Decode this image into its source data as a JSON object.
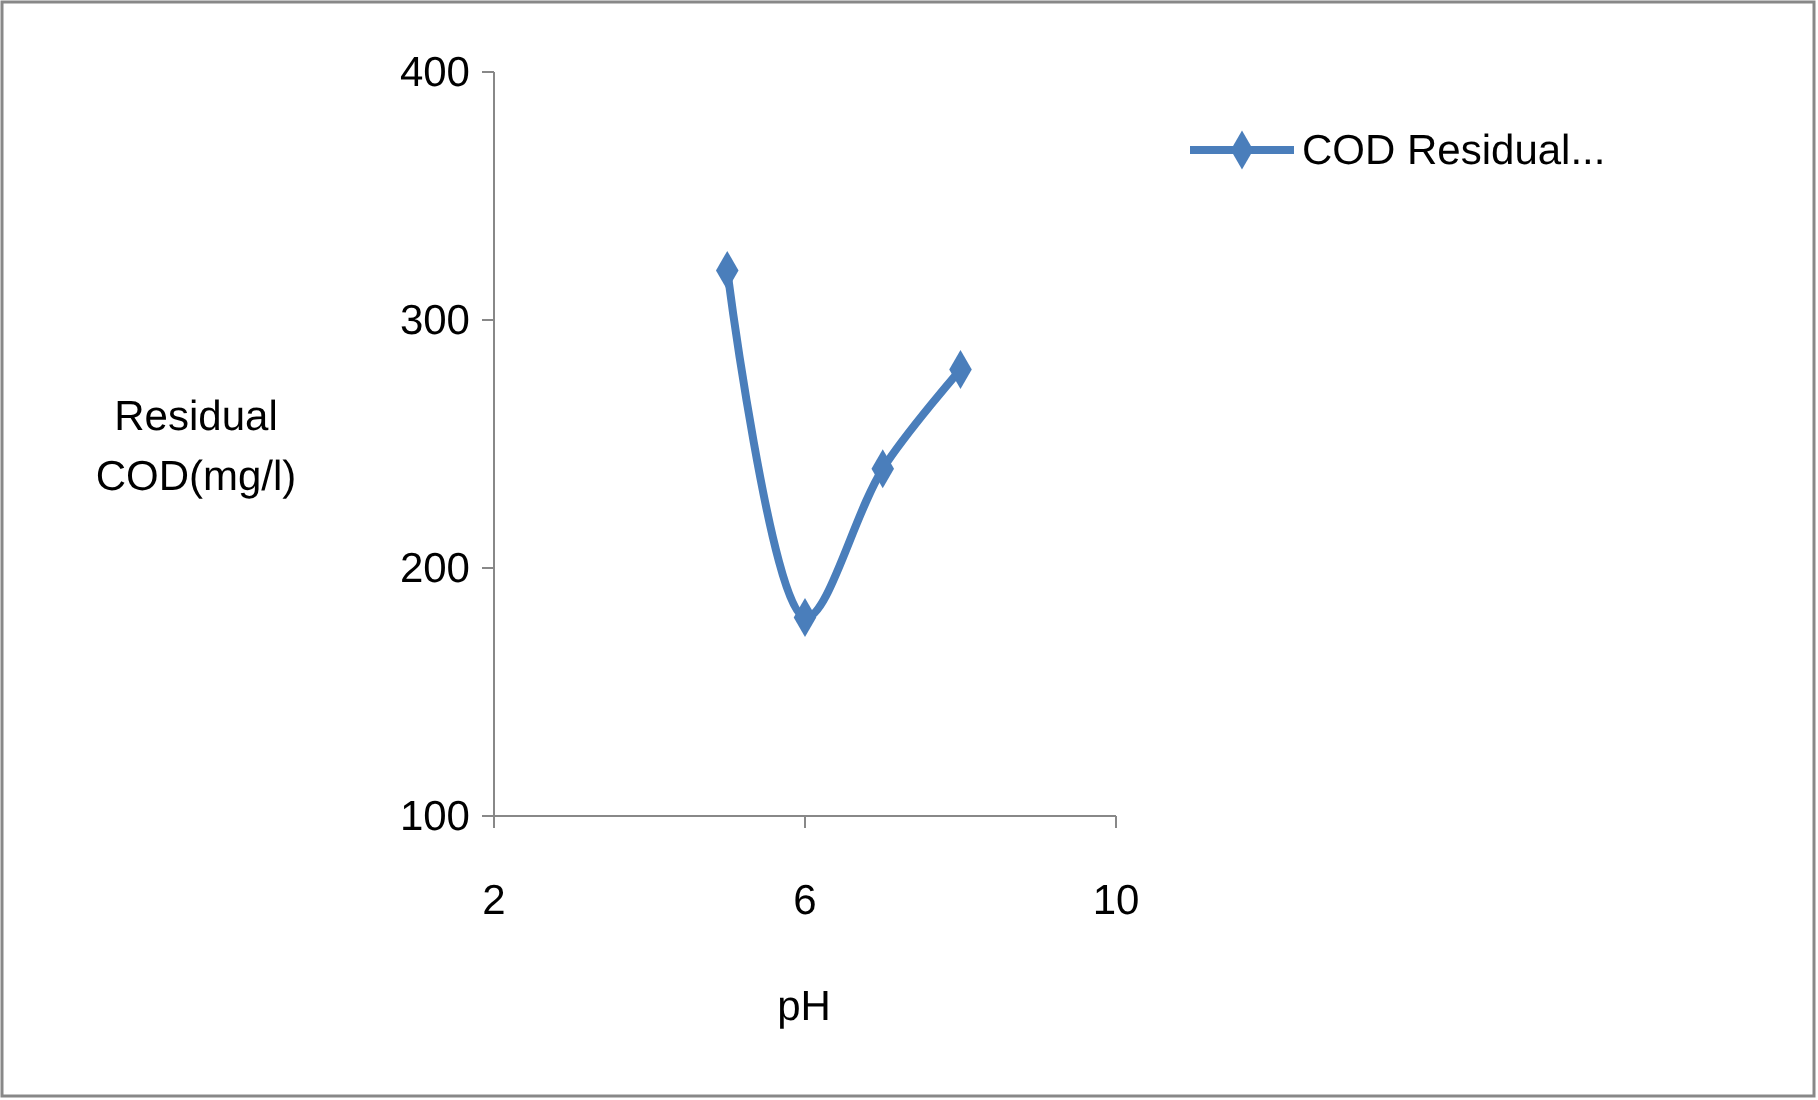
{
  "chart_data": {
    "type": "line",
    "xlabel": "pH",
    "ylabel": "Residual COD(mg/l)",
    "x": [
      5,
      6,
      7,
      8
    ],
    "series": [
      {
        "name": "COD Residual...",
        "color": "#4a7ebb",
        "values": [
          320,
          180,
          240,
          280
        ]
      }
    ],
    "xlim": [
      2,
      10
    ],
    "xticks": [
      2,
      6,
      10
    ],
    "ylim": [
      100,
      400
    ],
    "yticks": [
      100,
      200,
      300,
      400
    ],
    "marker": "diamond",
    "legend": "top right",
    "grid": false
  }
}
